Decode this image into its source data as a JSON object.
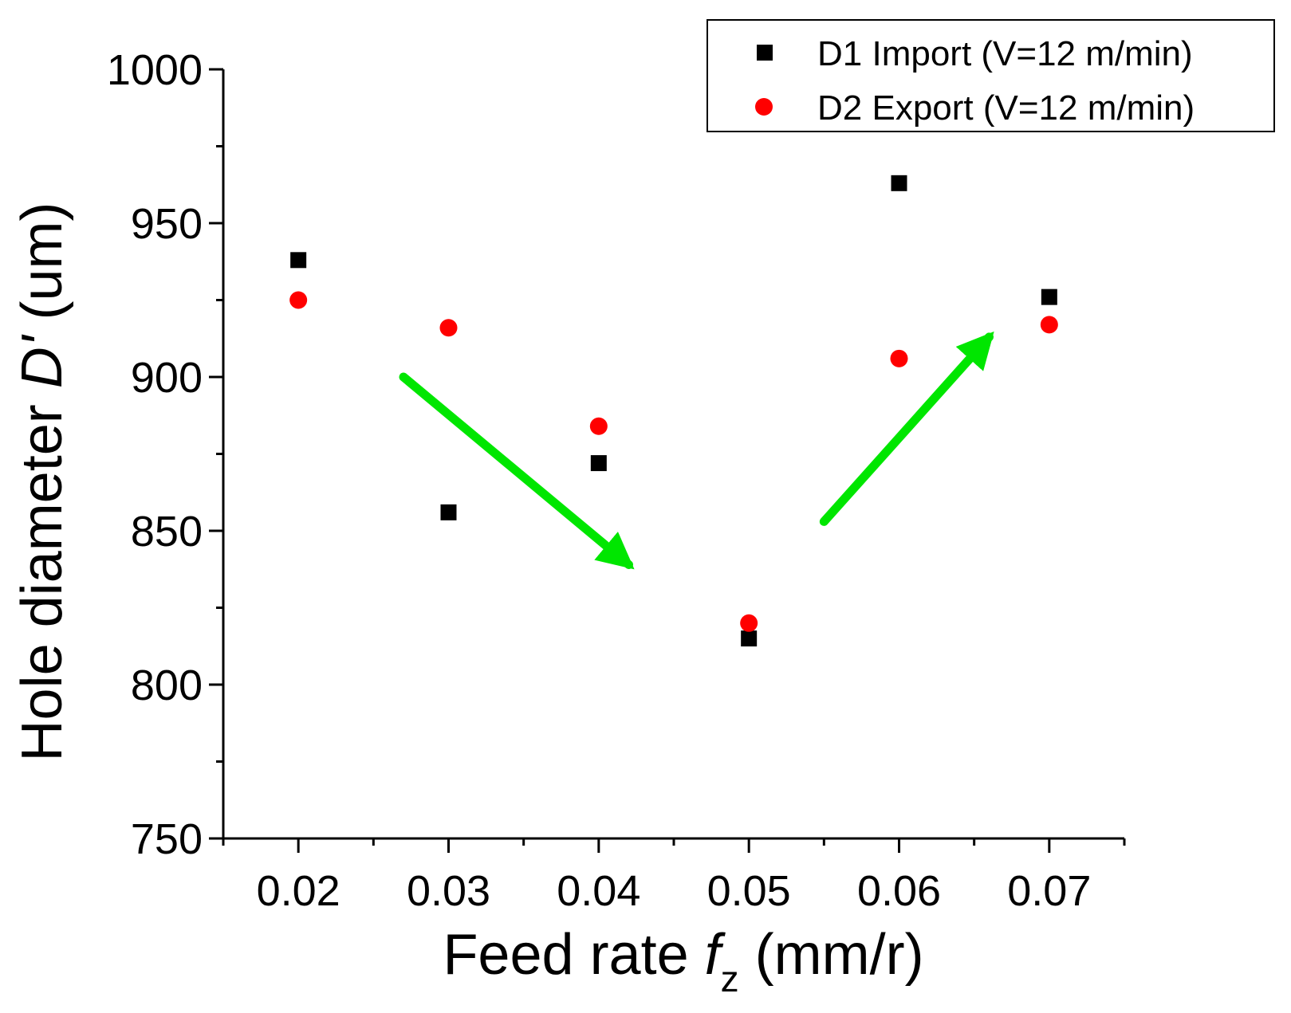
{
  "chart_data": {
    "type": "scatter",
    "xlabel": {
      "prefix": "Feed rate ",
      "var": "f",
      "sub": "z",
      "suffix": " (mm/r)"
    },
    "ylabel": {
      "prefix": "Hole diameter ",
      "var": "D'",
      "suffix": " (um)"
    },
    "xlim": [
      0.015,
      0.075
    ],
    "ylim": [
      750,
      1000
    ],
    "xticks": [
      0.02,
      0.03,
      0.04,
      0.05,
      0.06,
      0.07
    ],
    "xtick_labels": [
      "0.02",
      "0.03",
      "0.04",
      "0.05",
      "0.06",
      "0.07"
    ],
    "yticks": [
      750,
      800,
      850,
      900,
      950,
      1000
    ],
    "ytick_labels": [
      "750",
      "800",
      "850",
      "900",
      "950",
      "1000"
    ],
    "grid": false,
    "legend_position": "top-right",
    "series": [
      {
        "name": "D1 Import (V=12 m/min)",
        "marker": "square",
        "color": "#000000",
        "x": [
          0.02,
          0.03,
          0.04,
          0.05,
          0.06,
          0.07
        ],
        "y": [
          938,
          856,
          872,
          815,
          963,
          926
        ]
      },
      {
        "name": "D2 Export (V=12 m/min)",
        "marker": "circle",
        "color": "#ff0000",
        "x": [
          0.02,
          0.03,
          0.04,
          0.05,
          0.06,
          0.07
        ],
        "y": [
          925,
          916,
          884,
          820,
          906,
          917
        ]
      }
    ],
    "annotations": [
      {
        "type": "arrow",
        "color": "#00e600",
        "from": [
          0.027,
          900
        ],
        "to": [
          0.042,
          839
        ]
      },
      {
        "type": "arrow",
        "color": "#00e600",
        "from": [
          0.055,
          853
        ],
        "to": [
          0.066,
          913
        ]
      }
    ]
  }
}
